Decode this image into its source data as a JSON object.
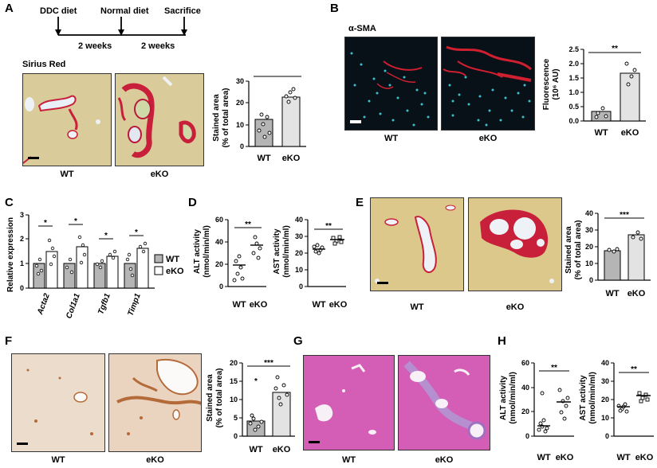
{
  "panels": {
    "A": "A",
    "B": "B",
    "C": "C",
    "D": "D",
    "E": "E",
    "F": "F",
    "G": "G",
    "H": "H"
  },
  "timeline": {
    "diet1": "DDC diet",
    "diet2": "Normal diet",
    "end": "Sacrifice",
    "dur1": "2 weeks",
    "dur2": "2 weeks"
  },
  "stains": {
    "a": "Sirius Red",
    "b": "α-SMA"
  },
  "groups": {
    "wt": "WT",
    "eko": "eKO"
  },
  "axes": {
    "stained1": "Stained area",
    "stained2": "(% of total area)",
    "fluor1": "Fluorescence",
    "fluor2": "(10⁶ AU)",
    "relexp": "Relative expression",
    "alt": "ALT activity",
    "ast": "AST activity",
    "units": "(nmol/min/ml)"
  },
  "sig": {
    "s1": "*",
    "s2": "**",
    "s3": "***"
  },
  "colors": {
    "wt_bar": "#b5b5b5",
    "eko_bar": "#e3e3e3",
    "sirius_bg": "#dccf9e",
    "sirius_red": "#c8203a",
    "he_bg": "#d45db5",
    "ihc_bg": "#ead7c6"
  },
  "chart_data": [
    {
      "type": "bar",
      "panel": "A",
      "categories": [
        "WT",
        "eKO"
      ],
      "values": [
        12.5,
        22.5
      ],
      "ylim": [
        0,
        30
      ],
      "yticks": [
        0,
        10,
        20,
        30
      ],
      "ylabel": "Stained area (% of total area)",
      "significance": "***"
    },
    {
      "type": "bar",
      "panel": "B",
      "categories": [
        "WT",
        "eKO"
      ],
      "values": [
        0.33,
        1.67
      ],
      "ylim": [
        0,
        2.5
      ],
      "yticks": [
        0.0,
        0.5,
        1.0,
        1.5,
        2.0,
        2.5
      ],
      "ylabel": "Fluorescence (10⁶ AU)",
      "significance": "**"
    },
    {
      "type": "bar",
      "panel": "C",
      "categories": [
        "Acta2",
        "Col1a1",
        "Tgfb1",
        "Timp1"
      ],
      "ylim": [
        0,
        3
      ],
      "yticks": [
        0,
        1,
        2,
        3
      ],
      "ylabel": "Relative expression",
      "series": [
        {
          "name": "WT",
          "values": [
            1.0,
            1.0,
            1.0,
            1.0
          ]
        },
        {
          "name": "eKO",
          "values": [
            1.5,
            1.7,
            1.3,
            1.6
          ]
        }
      ],
      "significance": [
        "*",
        "*",
        "*",
        "*"
      ]
    },
    {
      "type": "scatter",
      "panel": "D-ALT",
      "categories": [
        "WT",
        "eKO"
      ],
      "means": [
        19,
        37
      ],
      "ylim": [
        0,
        60
      ],
      "yticks": [
        0,
        20,
        40,
        60
      ],
      "ylabel": "ALT activity (nmol/min/ml)",
      "significance": "**"
    },
    {
      "type": "scatter",
      "panel": "D-AST",
      "categories": [
        "WT",
        "eKO"
      ],
      "means": [
        24,
        29
      ],
      "ylim": [
        0,
        40
      ],
      "yticks": [
        0,
        10,
        20,
        30,
        40
      ],
      "ylabel": "AST activity (nmol/min/ml)",
      "significance": "**"
    },
    {
      "type": "bar",
      "panel": "E",
      "categories": [
        "WT",
        "eKO"
      ],
      "values": [
        17.5,
        27
      ],
      "ylim": [
        0,
        40
      ],
      "yticks": [
        0,
        10,
        20,
        30,
        40
      ],
      "ylabel": "Stained area (% of total area)",
      "significance": "***"
    },
    {
      "type": "bar",
      "panel": "F",
      "categories": [
        "WT",
        "eKO"
      ],
      "values": [
        4.2,
        12
      ],
      "ylim": [
        0,
        20
      ],
      "yticks": [
        0,
        5,
        10,
        15,
        20
      ],
      "ylabel": "Stained area (% of total area)",
      "significance": "***"
    },
    {
      "type": "scatter",
      "panel": "H-ALT",
      "categories": [
        "WT",
        "eKO"
      ],
      "means": [
        9,
        28
      ],
      "ylim": [
        0,
        60
      ],
      "yticks": [
        0,
        20,
        40,
        60
      ],
      "ylabel": "ALT activity (nmol/min/ml)",
      "significance": "**"
    },
    {
      "type": "scatter",
      "panel": "H-AST",
      "categories": [
        "WT",
        "eKO"
      ],
      "means": [
        16,
        24
      ],
      "ylim": [
        0,
        40
      ],
      "yticks": [
        0,
        10,
        20,
        30,
        40
      ],
      "ylabel": "AST activity (nmol/min/ml)",
      "significance": "**"
    }
  ]
}
